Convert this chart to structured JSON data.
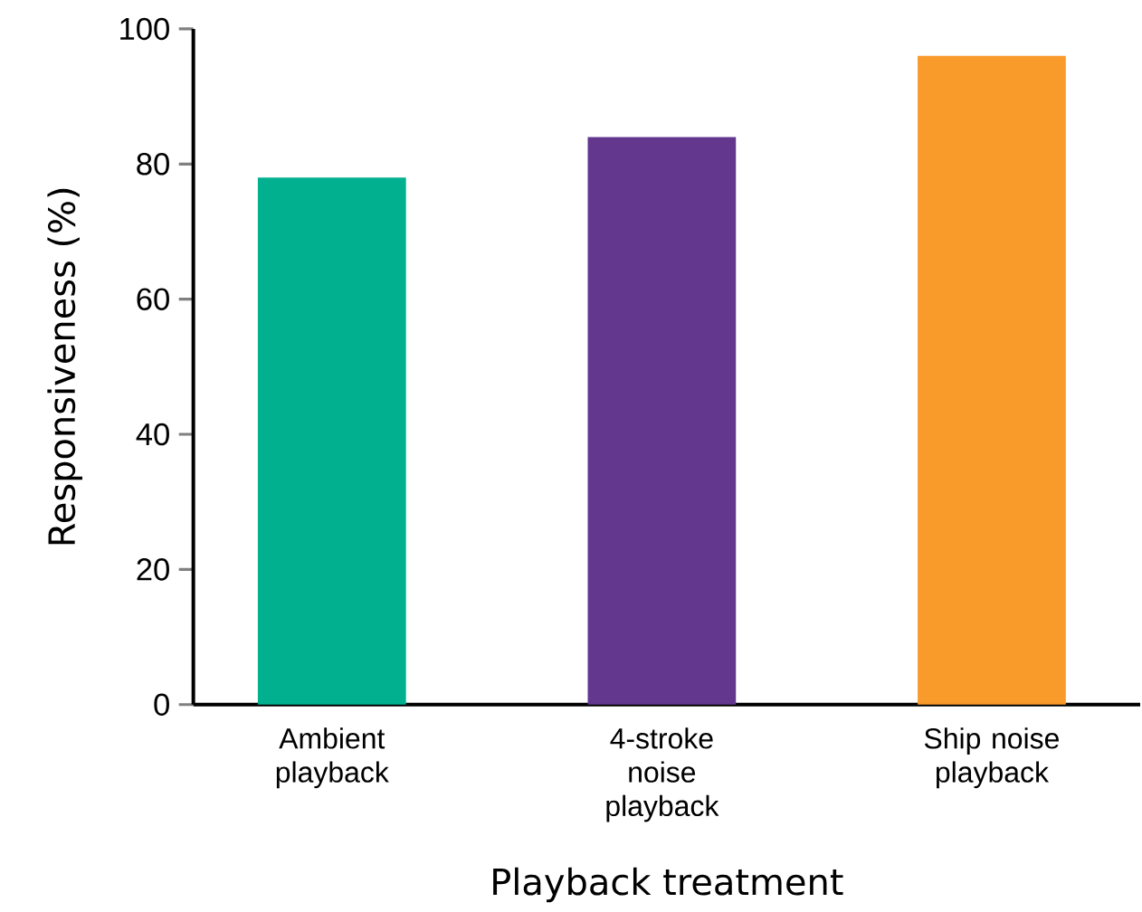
{
  "chart_data": {
    "type": "bar",
    "xlabel": "Playback treatment",
    "ylabel": "Responsiveness (%)",
    "categories": [
      "Ambient playback",
      "4-stroke noise playback",
      "Ship noise playback"
    ],
    "values": [
      78,
      84,
      96
    ],
    "colors": [
      "#00b08f",
      "#64378f",
      "#f99b2b"
    ],
    "ylim": [
      0,
      100
    ],
    "yticks": [
      0,
      20,
      40,
      60,
      80,
      100
    ]
  }
}
